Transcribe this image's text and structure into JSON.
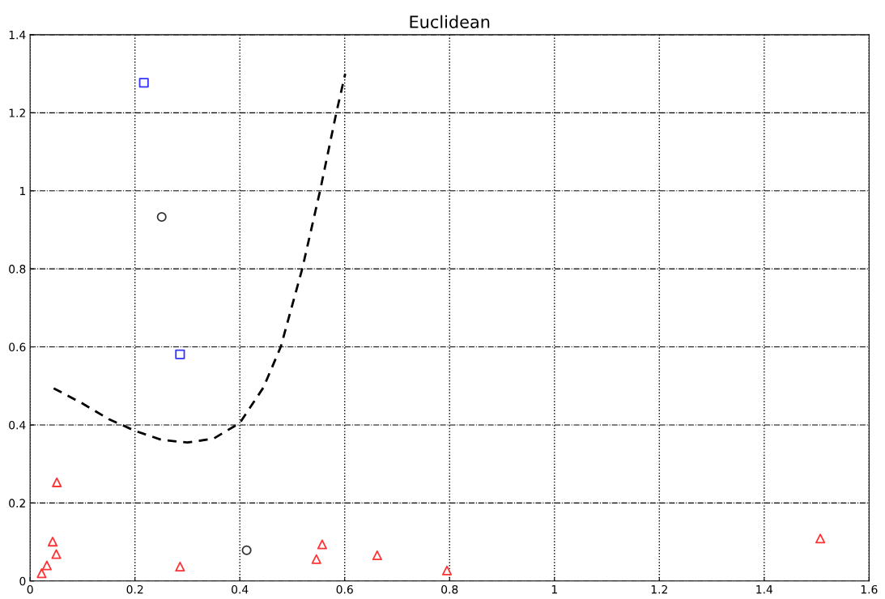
{
  "chart_data": {
    "type": "scatter",
    "title": "Euclidean",
    "xlim": [
      0,
      1.6
    ],
    "xticks": [
      0,
      0.2,
      0.4,
      0.6,
      0.8,
      1,
      1.2,
      1.4,
      1.6
    ],
    "ylim": [
      0,
      1.4
    ],
    "yticks": [
      0,
      0.2,
      0.4,
      0.6,
      0.8,
      1,
      1.2,
      1.4
    ],
    "grid": true,
    "legend": false,
    "series": [
      {
        "marker": "triangle",
        "color": "#ff3333",
        "x": [
          0.051,
          0.043,
          0.05,
          0.032,
          0.022,
          0.286,
          0.557,
          0.546,
          0.662,
          0.795,
          1.507
        ],
        "values": [
          0.253,
          0.101,
          0.069,
          0.04,
          0.02,
          0.037,
          0.094,
          0.056,
          0.066,
          0.027,
          0.109
        ]
      },
      {
        "marker": "square",
        "color": "#3333ff",
        "x": [
          0.217,
          0.286
        ],
        "values": [
          1.277,
          0.581
        ]
      },
      {
        "marker": "circle",
        "color": "#333333",
        "x": [
          0.251,
          0.413
        ],
        "values": [
          0.933,
          0.079
        ]
      },
      {
        "type": "line",
        "marker": "none",
        "line_style": "dashed",
        "color": "#000000",
        "x": [
          0.045,
          0.1,
          0.15,
          0.2,
          0.25,
          0.3,
          0.35,
          0.4,
          0.445,
          0.478,
          0.519,
          0.553,
          0.584,
          0.601
        ],
        "values": [
          0.494,
          0.455,
          0.415,
          0.385,
          0.362,
          0.355,
          0.365,
          0.405,
          0.496,
          0.6,
          0.8,
          1.0,
          1.2,
          1.3
        ]
      }
    ]
  }
}
